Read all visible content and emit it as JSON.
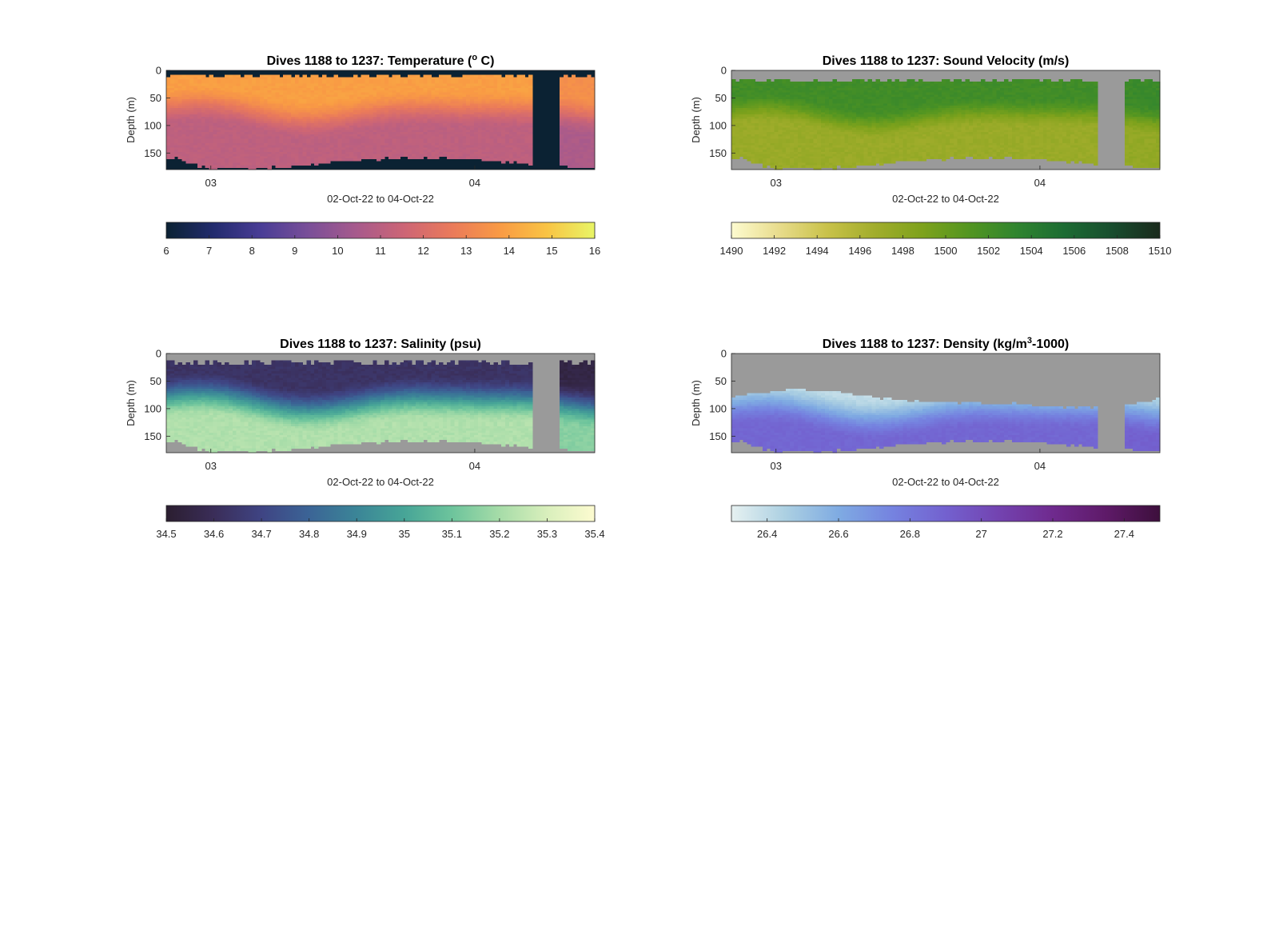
{
  "figure": {
    "panels": [
      {
        "id": "temperature",
        "title_main": "Dives 1188 to 1237: Temperature (",
        "title_sup": "o",
        "title_tail": " C)",
        "ylabel": "Depth (m)",
        "xlabel": "02-Oct-22 to 04-Oct-22",
        "y_ticks": [
          "0",
          "50",
          "100",
          "150"
        ],
        "x_ticks": [
          "03",
          "04"
        ],
        "colorbar_ticks": [
          "6",
          "7",
          "8",
          "9",
          "10",
          "11",
          "12",
          "13",
          "14",
          "15",
          "16"
        ],
        "background": "#0b2233",
        "colormap": [
          "#0b2233",
          "#222b6e",
          "#4a3d96",
          "#7a4f98",
          "#a75a8c",
          "#cd6575",
          "#ea7a5a",
          "#f99a44",
          "#f9c444",
          "#e8f566"
        ]
      },
      {
        "id": "sound-velocity",
        "title_main": "Dives 1188 to 1237: Sound Velocity (m/s)",
        "title_sup": "",
        "title_tail": "",
        "ylabel": "Depth (m)",
        "xlabel": "02-Oct-22 to 04-Oct-22",
        "y_ticks": [
          "0",
          "50",
          "100",
          "150"
        ],
        "x_ticks": [
          "03",
          "04"
        ],
        "colorbar_ticks": [
          "1490",
          "1492",
          "1494",
          "1496",
          "1498",
          "1500",
          "1502",
          "1504",
          "1506",
          "1508",
          "1510"
        ],
        "background": "#9a9a9a",
        "colormap": [
          "#fdfbd0",
          "#e8dc8c",
          "#c9c24a",
          "#a2ad2c",
          "#7ea21c",
          "#529521",
          "#2f842f",
          "#1c6b33",
          "#184d2e",
          "#1a2a1c"
        ]
      },
      {
        "id": "salinity",
        "title_main": "Dives 1188 to 1237: Salinity (psu)",
        "title_sup": "",
        "title_tail": "",
        "ylabel": "Depth (m)",
        "xlabel": "02-Oct-22 to 04-Oct-22",
        "y_ticks": [
          "0",
          "50",
          "100",
          "150"
        ],
        "x_ticks": [
          "03",
          "04"
        ],
        "colorbar_ticks": [
          "34.5",
          "34.6",
          "34.7",
          "34.8",
          "34.9",
          "35",
          "35.1",
          "35.2",
          "35.3",
          "35.4"
        ],
        "background": "#9a9a9a",
        "colormap": [
          "#2b1e30",
          "#3a2d58",
          "#3f4483",
          "#3b6496",
          "#3b8597",
          "#47a597",
          "#6dc49c",
          "#a6dca8",
          "#d9efbc",
          "#fdfbd0"
        ]
      },
      {
        "id": "density",
        "title_main": "Dives 1188 to 1237: Density (kg/m",
        "title_sup": "3",
        "title_tail": "-1000)",
        "ylabel": "Depth (m)",
        "xlabel": "02-Oct-22 to 04-Oct-22",
        "y_ticks": [
          "0",
          "50",
          "100",
          "150"
        ],
        "x_ticks": [
          "03",
          "04"
        ],
        "colorbar_ticks": [
          "26.4",
          "26.6",
          "26.8",
          "27",
          "27.2",
          "27.4"
        ],
        "background": "#9a9a9a",
        "colormap": [
          "#e6f1f1",
          "#acd0e2",
          "#7fabe2",
          "#7583e0",
          "#7361cf",
          "#7343b0",
          "#6f2a8e",
          "#5e1a68",
          "#3d0f3c"
        ]
      }
    ]
  },
  "chart_data": [
    {
      "type": "heatmap",
      "title": "Dives 1188 to 1237: Temperature (° C)",
      "xlabel": "02-Oct-22 to 04-Oct-22",
      "ylabel": "Depth (m)",
      "x_range": [
        "02-Oct-22 19:00",
        "04-Oct-22 11:30"
      ],
      "x_ticks": [
        "03",
        "04"
      ],
      "y_range": [
        0,
        180
      ],
      "y_reversed": true,
      "y_ticks": [
        0,
        50,
        100,
        150
      ],
      "colorbar": {
        "range": [
          6,
          16
        ],
        "ticks": [
          6,
          7,
          8,
          9,
          10,
          11,
          12,
          13,
          14,
          15,
          16
        ],
        "label": "Temperature (° C)"
      },
      "depth_profile_at_03": {
        "depth_m": [
          10,
          50,
          100,
          150
        ],
        "value": [
          13.9,
          13.5,
          11.8,
          11.2
        ]
      },
      "data_gap": [
        "04-Oct-22 07:30",
        "04-Oct-22 09:00"
      ],
      "surface_cutoff_m": 8,
      "bottom_depth_m": [
        140,
        176,
        176,
        160,
        178,
        150
      ]
    },
    {
      "type": "heatmap",
      "title": "Dives 1188 to 1237: Sound Velocity (m/s)",
      "xlabel": "02-Oct-22 to 04-Oct-22",
      "ylabel": "Depth (m)",
      "x_range": [
        "02-Oct-22 19:00",
        "04-Oct-22 11:30"
      ],
      "x_ticks": [
        "03",
        "04"
      ],
      "y_range": [
        0,
        180
      ],
      "y_reversed": true,
      "y_ticks": [
        0,
        50,
        100,
        150
      ],
      "colorbar": {
        "range": [
          1490,
          1510
        ],
        "ticks": [
          1490,
          1492,
          1494,
          1496,
          1498,
          1500,
          1502,
          1504,
          1506,
          1508,
          1510
        ],
        "label": "Sound Velocity (m/s)"
      },
      "depth_profile_at_03": {
        "depth_m": [
          20,
          50,
          100,
          150
        ],
        "value": [
          1503.2,
          1502.3,
          1497.5,
          1496.8
        ]
      },
      "data_gap": [
        "04-Oct-22 07:30",
        "04-Oct-22 09:00"
      ],
      "surface_cutoff_m": 15,
      "bottom_depth_m": [
        140,
        176,
        176,
        160,
        178,
        150
      ]
    },
    {
      "type": "heatmap",
      "title": "Dives 1188 to 1237: Salinity (psu)",
      "xlabel": "02-Oct-22 to 04-Oct-22",
      "ylabel": "Depth (m)",
      "x_range": [
        "02-Oct-22 19:00",
        "04-Oct-22 11:30"
      ],
      "x_ticks": [
        "03",
        "04"
      ],
      "y_range": [
        0,
        180
      ],
      "y_reversed": true,
      "y_ticks": [
        0,
        50,
        100,
        150
      ],
      "colorbar": {
        "range": [
          34.5,
          35.4
        ],
        "ticks": [
          34.5,
          34.6,
          34.7,
          34.8,
          34.9,
          35,
          35.1,
          35.2,
          35.3,
          35.4
        ],
        "label": "Salinity (psu)"
      },
      "depth_profile_at_03": {
        "depth_m": [
          20,
          50,
          100,
          150
        ],
        "value": [
          34.62,
          34.68,
          35.02,
          35.22
        ]
      },
      "data_gap": [
        "04-Oct-22 07:30",
        "04-Oct-22 09:00"
      ],
      "surface_cutoff_m": 12,
      "bottom_depth_m": [
        140,
        176,
        176,
        160,
        178,
        150
      ]
    },
    {
      "type": "heatmap",
      "title": "Dives 1188 to 1237: Density (kg/m³-1000)",
      "xlabel": "02-Oct-22 to 04-Oct-22",
      "ylabel": "Depth (m)",
      "x_range": [
        "02-Oct-22 19:00",
        "04-Oct-22 11:30"
      ],
      "x_ticks": [
        "03",
        "04"
      ],
      "y_range": [
        0,
        180
      ],
      "y_reversed": true,
      "y_ticks": [
        0,
        50,
        100,
        150
      ],
      "colorbar": {
        "range": [
          26.3,
          27.5
        ],
        "ticks": [
          26.4,
          26.6,
          26.8,
          27,
          27.2,
          27.4
        ],
        "label": "Density (kg/m³-1000)"
      },
      "depth_profile_at_03": {
        "depth_m": [
          80,
          100,
          150
        ],
        "value": [
          26.55,
          26.75,
          26.95
        ]
      },
      "data_gap": [
        "04-Oct-22 07:30",
        "04-Oct-22 09:00"
      ],
      "surface_cutoff_m": 70,
      "bottom_depth_m": [
        140,
        176,
        176,
        160,
        178,
        150
      ]
    }
  ]
}
